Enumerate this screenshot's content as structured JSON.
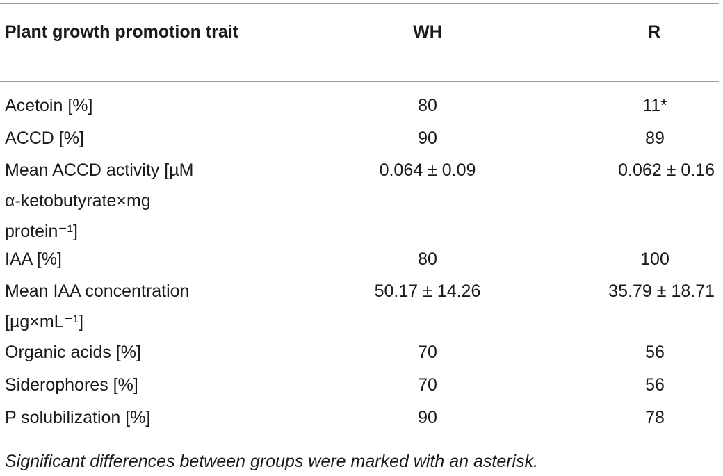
{
  "table": {
    "headers": [
      "Plant growth promotion trait",
      "WH",
      "R"
    ],
    "rows": [
      {
        "trait_lines": [
          "Acetoin [%]"
        ],
        "wh": "80",
        "r": "11*"
      },
      {
        "trait_lines": [
          "ACCD [%]"
        ],
        "wh": "90",
        "r": "89"
      },
      {
        "trait_lines": [
          "Mean ACCD activity [µM",
          "α-ketobutyrate×mg",
          "protein⁻¹]"
        ],
        "wh": "0.064 ± 0.09",
        "r": "0.062 ± 0.16"
      },
      {
        "trait_lines": [
          "IAA [%]"
        ],
        "wh": "80",
        "r": "100"
      },
      {
        "trait_lines": [
          "Mean IAA concentration",
          "[µg×mL⁻¹]"
        ],
        "wh": "50.17 ± 14.26",
        "r": "35.79 ± 18.71"
      },
      {
        "trait_lines": [
          "Organic acids [%]"
        ],
        "wh": "70",
        "r": "56"
      },
      {
        "trait_lines": [
          "Siderophores [%]"
        ],
        "wh": "70",
        "r": "56"
      },
      {
        "trait_lines": [
          "P solubilization [%]"
        ],
        "wh": "90",
        "r": "78"
      }
    ]
  },
  "footnote": "Significant differences between groups were marked with an asterisk."
}
